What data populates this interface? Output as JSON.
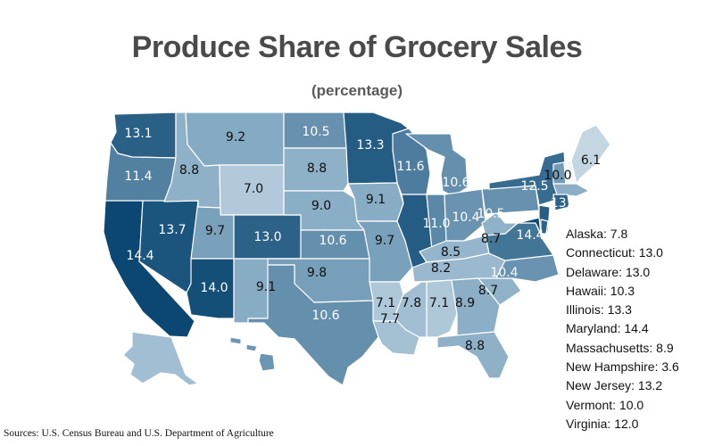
{
  "title": "Produce Share of Grocery Sales",
  "subtitle": "(percentage)",
  "source": "Sources: U.S. Census Bureau and U.S. Department of  Agriculture",
  "color_scale": {
    "low": "#f4f8fb",
    "mid": "#8aaec6",
    "high": "#0b4772",
    "min": 3.6,
    "max": 14.4
  },
  "chart_data": {
    "type": "choropleth",
    "title": "Produce Share of Grocery Sales",
    "subtitle": "(percentage)",
    "states": [
      {
        "id": "WA",
        "value": 13.1,
        "label": "13.1"
      },
      {
        "id": "OR",
        "value": 11.4,
        "label": "11.4"
      },
      {
        "id": "CA",
        "value": 14.4,
        "label": "14.4"
      },
      {
        "id": "NV",
        "value": 13.7,
        "label": "13.7"
      },
      {
        "id": "ID",
        "value": 8.8,
        "label": "8.8"
      },
      {
        "id": "MT",
        "value": 9.2,
        "label": "9.2"
      },
      {
        "id": "WY",
        "value": 7.0,
        "label": "7.0"
      },
      {
        "id": "UT",
        "value": 9.7,
        "label": "9.7"
      },
      {
        "id": "AZ",
        "value": 14.0,
        "label": "14.0"
      },
      {
        "id": "CO",
        "value": 13.0,
        "label": "13.0"
      },
      {
        "id": "NM",
        "value": 9.1,
        "label": "9.1"
      },
      {
        "id": "ND",
        "value": 10.5,
        "label": "10.5"
      },
      {
        "id": "SD",
        "value": 8.8,
        "label": "8.8"
      },
      {
        "id": "NE",
        "value": 9.0,
        "label": "9.0"
      },
      {
        "id": "KS",
        "value": 10.6,
        "label": "10.6"
      },
      {
        "id": "OK",
        "value": 9.8,
        "label": "9.8"
      },
      {
        "id": "TX",
        "value": 10.6,
        "label": "10.6"
      },
      {
        "id": "MN",
        "value": 13.3,
        "label": "13.3"
      },
      {
        "id": "IA",
        "value": 9.1,
        "label": "9.1"
      },
      {
        "id": "MO",
        "value": 9.7,
        "label": "9.7"
      },
      {
        "id": "AR",
        "value": 7.1,
        "label": "7.1"
      },
      {
        "id": "LA",
        "value": 7.7,
        "label": "7.7"
      },
      {
        "id": "WI",
        "value": 11.6,
        "label": "11.6"
      },
      {
        "id": "IL",
        "value": 13.3,
        "label": ""
      },
      {
        "id": "MI",
        "value": 10.6,
        "label": "10.6"
      },
      {
        "id": "IN",
        "value": 11.0,
        "label": "11.0"
      },
      {
        "id": "OH",
        "value": 10.4,
        "label": "10.4"
      },
      {
        "id": "KY",
        "value": 8.5,
        "label": "8.5"
      },
      {
        "id": "TN",
        "value": 8.2,
        "label": "8.2"
      },
      {
        "id": "MS",
        "value": 7.8,
        "label": "7.8"
      },
      {
        "id": "AL",
        "value": 7.1,
        "label": "7.1"
      },
      {
        "id": "GA",
        "value": 8.9,
        "label": "8.9"
      },
      {
        "id": "FL",
        "value": 8.8,
        "label": "8.8"
      },
      {
        "id": "SC",
        "value": 8.7,
        "label": "8.7"
      },
      {
        "id": "NC",
        "value": 10.4,
        "label": "10.4"
      },
      {
        "id": "VA",
        "value": 12.0,
        "label": ""
      },
      {
        "id": "WV",
        "value": 8.7,
        "label": "8.7"
      },
      {
        "id": "PA",
        "value": 10.5,
        "label": "10.5"
      },
      {
        "id": "NY",
        "value": 12.5,
        "label": "12.5"
      },
      {
        "id": "VT",
        "value": 10.0,
        "label": "10.0"
      },
      {
        "id": "NH",
        "value": 3.6,
        "label": ""
      },
      {
        "id": "ME",
        "value": 6.1,
        "label": "6.1"
      },
      {
        "id": "MA",
        "value": 8.9,
        "label": ""
      },
      {
        "id": "CT",
        "value": 13.0,
        "label": "13."
      },
      {
        "id": "NJ",
        "value": 13.2,
        "label": ""
      },
      {
        "id": "MD",
        "value": 14.4,
        "label": "14.4"
      },
      {
        "id": "DE",
        "value": 13.0,
        "label": ""
      },
      {
        "id": "AK",
        "value": 7.8,
        "label": ""
      },
      {
        "id": "HI",
        "value": 10.3,
        "label": ""
      }
    ]
  },
  "legend_items": [
    {
      "text": "Alaska: 7.8"
    },
    {
      "text": "Connecticut: 13.0"
    },
    {
      "text": "Delaware: 13.0"
    },
    {
      "text": "Hawaii: 10.3"
    },
    {
      "text": "Illinois: 13.3"
    },
    {
      "text": "Maryland: 14.4"
    },
    {
      "text": "Massachusetts: 8.9"
    },
    {
      "text": "New Hampshire: 3.6"
    },
    {
      "text": "New Jersey: 13.2"
    },
    {
      "text": "Vermont: 10.0"
    },
    {
      "text": "Virginia: 12.0"
    }
  ]
}
